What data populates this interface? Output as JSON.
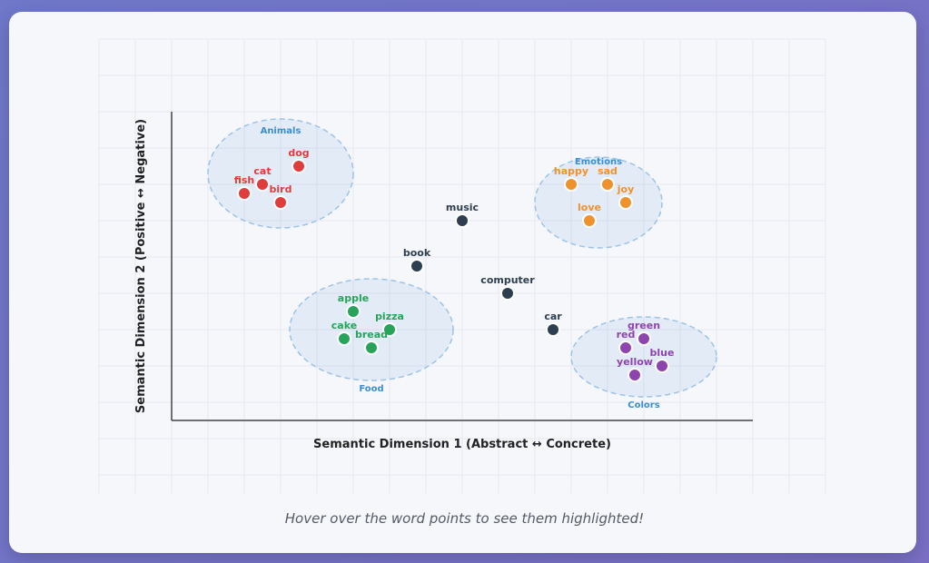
{
  "caption": "Hover over the word points to see them highlighted!",
  "chart_data": {
    "type": "scatter",
    "title": "",
    "xlabel": "Semantic Dimension 1 (Abstract ↔ Concrete)",
    "ylabel": "Semantic Dimension 2 (Positive ↔ Negative)",
    "xlim": [
      0,
      16
    ],
    "ylim": [
      0,
      8.5
    ],
    "grid": true,
    "colors": {
      "Animals": "#e03c3c",
      "Emotions": "#f0922c",
      "Food": "#27a35a",
      "Colors": "#8e44ad",
      "Other": "#2c3e50",
      "cluster_label": "#3a8fd0"
    },
    "clusters": [
      {
        "name": "Animals",
        "cx": 3.0,
        "cy": 6.8,
        "rx": 2.0,
        "ry": 1.5,
        "label_pos": "top"
      },
      {
        "name": "Emotions",
        "cx": 11.75,
        "cy": 6.0,
        "rx": 1.75,
        "ry": 1.25,
        "label_pos": "top-inside"
      },
      {
        "name": "Food",
        "cx": 5.5,
        "cy": 2.5,
        "rx": 2.25,
        "ry": 1.4,
        "label_pos": "bottom"
      },
      {
        "name": "Colors",
        "cx": 13.0,
        "cy": 1.75,
        "rx": 2.0,
        "ry": 1.1,
        "label_pos": "bottom"
      }
    ],
    "points": [
      {
        "word": "dog",
        "x": 3.5,
        "y": 7.0,
        "group": "Animals"
      },
      {
        "word": "cat",
        "x": 2.5,
        "y": 6.5,
        "group": "Animals"
      },
      {
        "word": "fish",
        "x": 2.0,
        "y": 6.25,
        "group": "Animals"
      },
      {
        "word": "bird",
        "x": 3.0,
        "y": 6.0,
        "group": "Animals"
      },
      {
        "word": "happy",
        "x": 11.0,
        "y": 6.5,
        "group": "Emotions"
      },
      {
        "word": "sad",
        "x": 12.0,
        "y": 6.5,
        "group": "Emotions"
      },
      {
        "word": "joy",
        "x": 12.5,
        "y": 6.0,
        "group": "Emotions"
      },
      {
        "word": "love",
        "x": 11.5,
        "y": 5.5,
        "group": "Emotions"
      },
      {
        "word": "apple",
        "x": 5.0,
        "y": 3.0,
        "group": "Food"
      },
      {
        "word": "pizza",
        "x": 6.0,
        "y": 2.5,
        "group": "Food"
      },
      {
        "word": "cake",
        "x": 4.75,
        "y": 2.25,
        "group": "Food"
      },
      {
        "word": "bread",
        "x": 5.5,
        "y": 2.0,
        "group": "Food"
      },
      {
        "word": "green",
        "x": 13.0,
        "y": 2.25,
        "group": "Colors"
      },
      {
        "word": "red",
        "x": 12.5,
        "y": 2.0,
        "group": "Colors"
      },
      {
        "word": "blue",
        "x": 13.5,
        "y": 1.5,
        "group": "Colors"
      },
      {
        "word": "yellow",
        "x": 12.75,
        "y": 1.25,
        "group": "Colors"
      },
      {
        "word": "music",
        "x": 8.0,
        "y": 5.5,
        "group": "Other"
      },
      {
        "word": "book",
        "x": 6.75,
        "y": 4.25,
        "group": "Other"
      },
      {
        "word": "computer",
        "x": 9.25,
        "y": 3.5,
        "group": "Other"
      },
      {
        "word": "car",
        "x": 10.5,
        "y": 2.5,
        "group": "Other"
      }
    ]
  }
}
